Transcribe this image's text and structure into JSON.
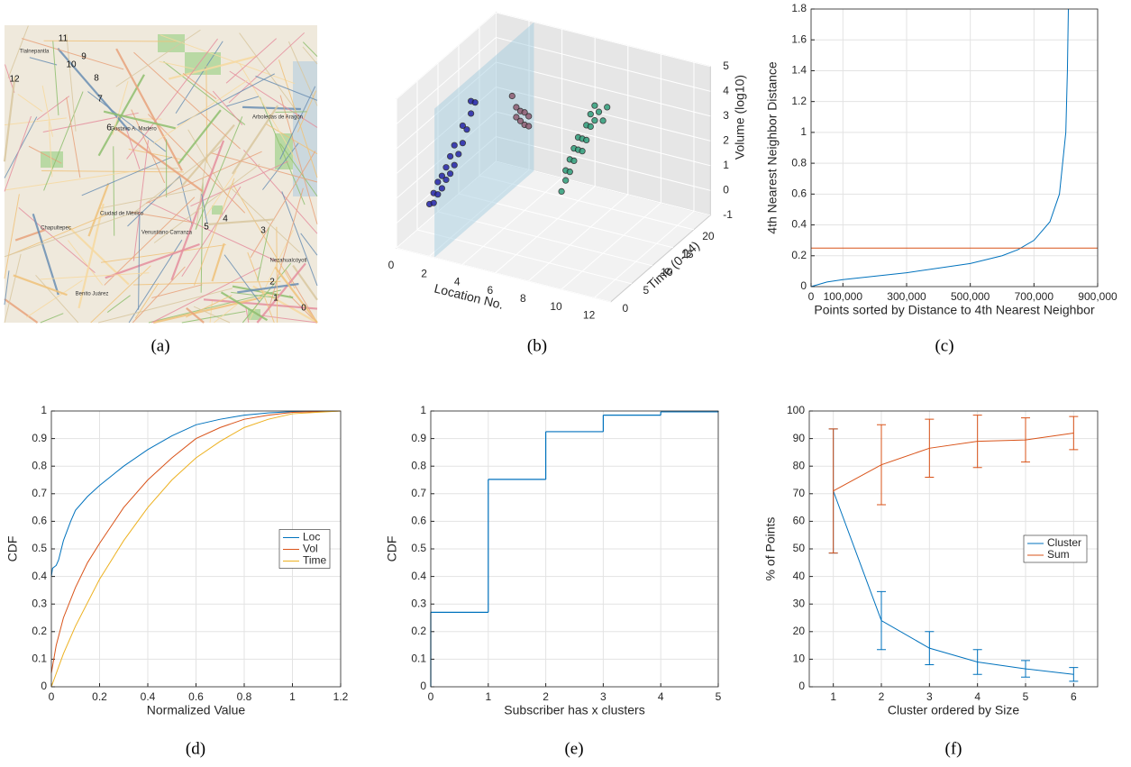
{
  "chart_data": [
    {
      "type": "map",
      "caption": "(a)",
      "labels": [
        "0",
        "1",
        "2",
        "3",
        "4",
        "5",
        "6",
        "7",
        "8",
        "9",
        "10",
        "11",
        "12"
      ],
      "places": [
        "Tlalnepantla",
        "Gustavo A. Madero",
        "Ciudad de México",
        "Chapultepec",
        "Venustiano Carranza",
        "Benito Juárez",
        "Arboledas de Aragón",
        "Nezahualcóyotl"
      ]
    },
    {
      "type": "scatter3d",
      "caption": "(b)",
      "xlabel": "Location No.",
      "ylabel": "Time (0-24)",
      "zlabel": "Volume (log10)",
      "xlim": [
        0,
        13
      ],
      "ylim": [
        0,
        24
      ],
      "zlim": [
        -1,
        5
      ],
      "xticks": [
        0,
        2,
        4,
        6,
        8,
        10,
        12
      ],
      "yticks": [
        0,
        5,
        10,
        15,
        20
      ],
      "zticks": [
        -1,
        0,
        1,
        2,
        3,
        4,
        5
      ],
      "series": [
        {
          "color": "#2424a8",
          "x": [
            2,
            2,
            2,
            2,
            2,
            2,
            2,
            2,
            2,
            2,
            2,
            2,
            2,
            2,
            2,
            2,
            2,
            2,
            2,
            2
          ],
          "y": [
            0,
            1,
            1,
            2,
            2,
            3,
            3,
            4,
            4,
            5,
            5,
            6,
            6,
            7,
            8,
            8,
            9,
            10,
            10,
            11
          ],
          "z": [
            1.1,
            1.0,
            1.4,
            1.2,
            1.7,
            1.3,
            1.8,
            1.5,
            2.0,
            1.6,
            2.3,
            1.8,
            2.6,
            2.1,
            2.4,
            3.1,
            2.8,
            3.3,
            3.8,
            3.6
          ]
        },
        {
          "color": "#8e5c72",
          "x": [
            5,
            5,
            5,
            5,
            5,
            5,
            5,
            5,
            5
          ],
          "y": [
            8,
            9,
            9,
            10,
            10,
            11,
            11,
            12,
            12
          ],
          "z": [
            4.8,
            3.8,
            4.2,
            3.5,
            3.9,
            3.2,
            3.7,
            3.0,
            3.4
          ]
        },
        {
          "color": "#2e9e7a",
          "x": [
            9,
            9,
            9,
            9,
            9,
            9,
            9,
            9,
            9,
            9,
            9,
            9,
            9,
            9,
            9,
            9,
            9,
            9,
            9,
            9
          ],
          "y": [
            4,
            5,
            5,
            6,
            6,
            7,
            7,
            8,
            8,
            9,
            9,
            10,
            10,
            11,
            11,
            12,
            12,
            13,
            14,
            15
          ],
          "z": [
            2.2,
            2.5,
            2.9,
            2.7,
            3.2,
            3.0,
            3.5,
            3.3,
            3.8,
            3.1,
            3.6,
            4.0,
            3.4,
            3.8,
            4.3,
            3.9,
            4.5,
            4.1,
            3.6,
            4.0
          ]
        }
      ]
    },
    {
      "type": "line",
      "caption": "(c)",
      "xlabel": "Points sorted by Distance to 4th Nearest Neighbor",
      "ylabel": "4th Nearest Neighbor Distance",
      "xlim": [
        0,
        900000
      ],
      "ylim": [
        0,
        1.8
      ],
      "grid": true,
      "xticks": [
        0,
        {
          "value": 100000,
          "label": "100,000"
        },
        {
          "value": 300000,
          "label": "300,000"
        },
        {
          "value": 500000,
          "label": "500,000"
        },
        {
          "value": 700000,
          "label": "700,000"
        },
        {
          "value": 900000,
          "label": "900,000"
        }
      ],
      "yticks": [
        0,
        0.2,
        0.4,
        0.6,
        0.8,
        1,
        1.2,
        1.4,
        1.6,
        1.8
      ],
      "series": [
        {
          "color": "#0072bd",
          "x": [
            0,
            50000,
            100000,
            300000,
            500000,
            600000,
            650000,
            700000,
            750000,
            780000,
            800000,
            805000,
            808000
          ],
          "values": [
            0,
            0.03,
            0.045,
            0.09,
            0.15,
            0.2,
            0.24,
            0.3,
            0.42,
            0.6,
            1.0,
            1.4,
            1.8
          ]
        }
      ],
      "hline": {
        "value": 0.25,
        "color": "#d95319"
      }
    },
    {
      "type": "line",
      "caption": "(d)",
      "xlabel": "Normalized Value",
      "ylabel": "CDF",
      "xlim": [
        0,
        1.2
      ],
      "ylim": [
        0,
        1
      ],
      "grid": true,
      "legend": "center right",
      "xticks": [
        0,
        0.2,
        0.4,
        0.6,
        0.8,
        1,
        1.2
      ],
      "yticks": [
        0,
        0.1,
        0.2,
        0.3,
        0.4,
        0.5,
        0.6,
        0.7,
        0.8,
        0.9,
        1
      ],
      "series": [
        {
          "name": "Loc",
          "color": "#0072bd",
          "x": [
            0,
            0.005,
            0.02,
            0.03,
            0.05,
            0.08,
            0.1,
            0.15,
            0.2,
            0.3,
            0.4,
            0.5,
            0.6,
            0.7,
            0.8,
            0.9,
            1.0,
            1.2
          ],
          "values": [
            0.4,
            0.43,
            0.44,
            0.46,
            0.53,
            0.6,
            0.64,
            0.69,
            0.73,
            0.8,
            0.86,
            0.91,
            0.95,
            0.97,
            0.985,
            0.993,
            0.998,
            1
          ]
        },
        {
          "name": "Vol",
          "color": "#d95319",
          "x": [
            0,
            0.02,
            0.05,
            0.1,
            0.15,
            0.2,
            0.3,
            0.4,
            0.5,
            0.6,
            0.7,
            0.8,
            0.9,
            1.0,
            1.2
          ],
          "values": [
            0.05,
            0.15,
            0.25,
            0.36,
            0.45,
            0.52,
            0.65,
            0.75,
            0.83,
            0.9,
            0.94,
            0.97,
            0.985,
            0.995,
            1
          ]
        },
        {
          "name": "Time",
          "color": "#edb120",
          "x": [
            0,
            0.05,
            0.1,
            0.2,
            0.3,
            0.4,
            0.5,
            0.6,
            0.7,
            0.8,
            0.9,
            1.0,
            1.2
          ],
          "values": [
            0,
            0.12,
            0.22,
            0.39,
            0.53,
            0.65,
            0.75,
            0.83,
            0.89,
            0.94,
            0.97,
            0.99,
            1
          ]
        }
      ]
    },
    {
      "type": "step",
      "caption": "(e)",
      "xlabel": "Subscriber has x clusters",
      "ylabel": "CDF",
      "xlim": [
        0,
        5
      ],
      "ylim": [
        0,
        1
      ],
      "grid": true,
      "xticks": [
        0,
        1,
        2,
        3,
        4,
        5
      ],
      "yticks": [
        0,
        0.1,
        0.2,
        0.3,
        0.4,
        0.5,
        0.6,
        0.7,
        0.8,
        0.9,
        1
      ],
      "series": [
        {
          "color": "#0072bd",
          "x": [
            0,
            1,
            2,
            3,
            4,
            5
          ],
          "values": [
            0.27,
            0.752,
            0.925,
            0.985,
            0.997,
            1
          ]
        }
      ]
    },
    {
      "type": "errorbar",
      "caption": "(f)",
      "xlabel": "Cluster ordered by Size",
      "ylabel": "% of Points",
      "xlim": [
        0.5,
        6.5
      ],
      "ylim": [
        0,
        100
      ],
      "grid": true,
      "legend": "center right",
      "xticks": [
        1,
        2,
        3,
        4,
        5,
        6
      ],
      "yticks": [
        0,
        10,
        20,
        30,
        40,
        50,
        60,
        70,
        80,
        90,
        100
      ],
      "series": [
        {
          "name": "Cluster",
          "color": "#0072bd",
          "x": [
            1,
            2,
            3,
            4,
            5,
            6
          ],
          "values": [
            71,
            24,
            14,
            9,
            6.5,
            4.5
          ],
          "errors": [
            22.5,
            10.5,
            6,
            4.5,
            3,
            2.5
          ]
        },
        {
          "name": "Sum",
          "color": "#d95319",
          "x": [
            1,
            2,
            3,
            4,
            5,
            6
          ],
          "values": [
            71,
            80.5,
            86.5,
            89,
            89.5,
            92
          ],
          "errors": [
            22.5,
            14.5,
            10.5,
            9.5,
            8,
            6
          ]
        }
      ]
    }
  ]
}
